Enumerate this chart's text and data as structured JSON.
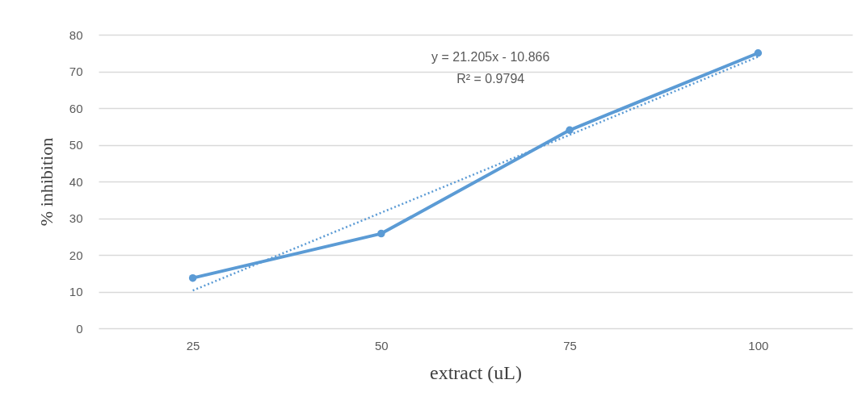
{
  "chart_data": {
    "type": "line",
    "xlabel": "extract (uL)",
    "ylabel": "% inhibition",
    "categories": [
      "25",
      "50",
      "75",
      "100"
    ],
    "series": [
      {
        "color": "#5b9bd5",
        "values": [
          13.7,
          25.8,
          54,
          75
        ],
        "marker": "circle",
        "line_style": "solid"
      },
      {
        "type": "line",
        "color": "#5b9bd5",
        "values": [
          10.3,
          31.5,
          52.7,
          74.0
        ],
        "marker": "none",
        "line_style": "dotted"
      }
    ],
    "ylim": [
      0,
      80
    ],
    "yticks": [
      0,
      10,
      20,
      30,
      40,
      50,
      60,
      70,
      80
    ],
    "grid": "y",
    "annotations": [
      "y = 21.205x - 10.866",
      "R² = 0.9794"
    ]
  }
}
